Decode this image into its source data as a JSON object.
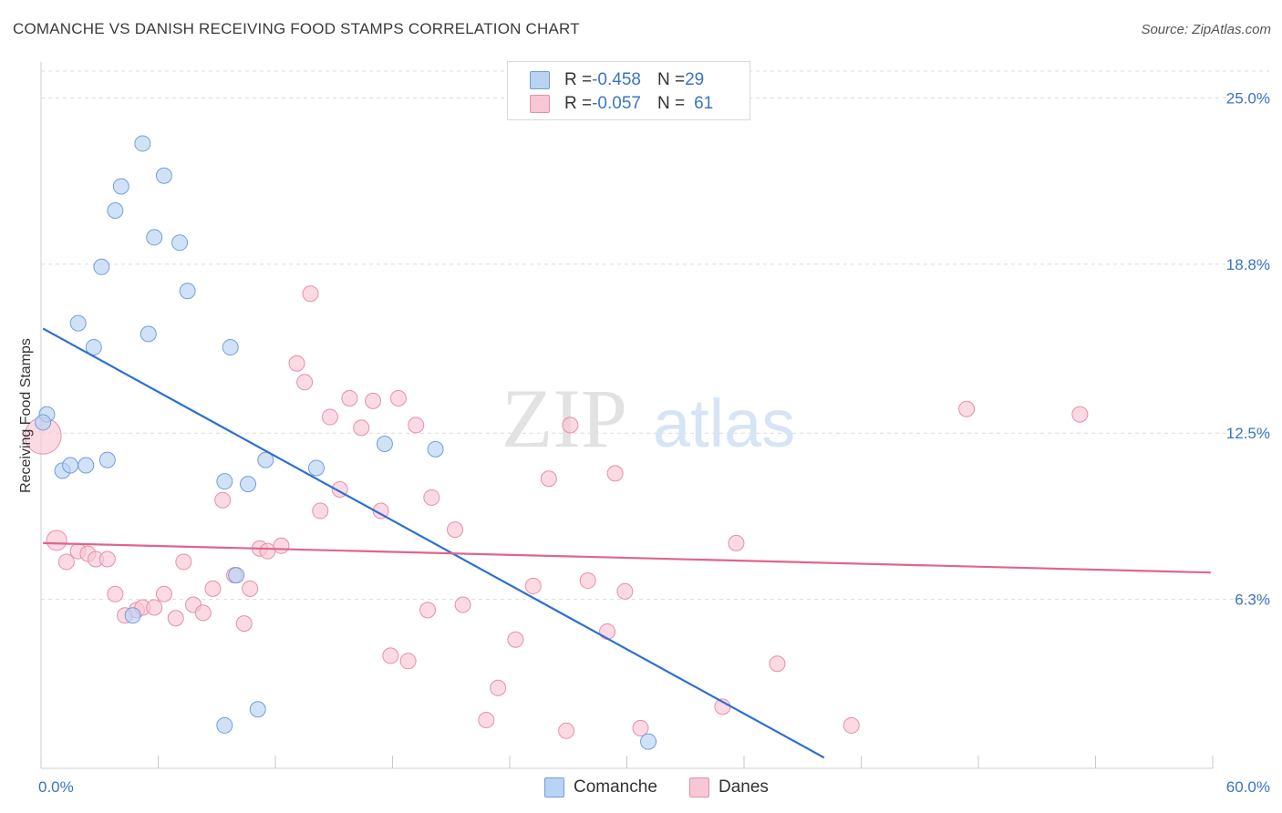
{
  "title": "COMANCHE VS DANISH RECEIVING FOOD STAMPS CORRELATION CHART",
  "source": "Source: ZipAtlas.com",
  "watermark": {
    "zip": "ZIP",
    "atlas": "atlas"
  },
  "legend": {
    "rows": [
      {
        "r_label": "R = ",
        "r_value": "-0.458",
        "n_label": "N = ",
        "n_value": "29"
      },
      {
        "r_label": "R = ",
        "r_value": "-0.057",
        "n_label": "N = ",
        "n_value": "61"
      }
    ]
  },
  "bottom_legend": {
    "comanche": "Comanche",
    "danes": "Danes"
  },
  "colors": {
    "comanche_fill": "#b9d3f3",
    "comanche_stroke": "#6f9fdc",
    "comanche_line": "#2f6fd1",
    "danes_fill": "#f9c6d5",
    "danes_stroke": "#e68fa9",
    "danes_line": "#e0648f",
    "tick_text": "#3b74c4",
    "grid": "#dcdcdc"
  },
  "chart_data": {
    "type": "scatter",
    "title": "COMANCHE VS DANISH RECEIVING FOOD STAMPS CORRELATION CHART",
    "xlabel": "",
    "ylabel": "Receiving Food Stamps",
    "xlim": [
      0,
      60
    ],
    "ylim": [
      0,
      26
    ],
    "x_tick_labels": [
      {
        "value": 0,
        "label": "0.0%"
      },
      {
        "value": 60,
        "label": "60.0%"
      }
    ],
    "y_tick_labels": [
      {
        "value": 6.3,
        "label": "6.3%"
      },
      {
        "value": 12.5,
        "label": "12.5%"
      },
      {
        "value": 18.8,
        "label": "18.8%"
      },
      {
        "value": 25.0,
        "label": "25.0%"
      }
    ],
    "series": [
      {
        "name": "Comanche",
        "r": -0.458,
        "n": 29,
        "points": [
          [
            0.3,
            13.2
          ],
          [
            1.1,
            11.1
          ],
          [
            1.5,
            11.3
          ],
          [
            2.3,
            11.3
          ],
          [
            3.4,
            11.5
          ],
          [
            1.9,
            16.6
          ],
          [
            2.7,
            15.7
          ],
          [
            3.1,
            18.7
          ],
          [
            3.8,
            20.8
          ],
          [
            4.1,
            21.7
          ],
          [
            5.2,
            23.3
          ],
          [
            5.5,
            16.2
          ],
          [
            5.8,
            19.8
          ],
          [
            6.3,
            22.1
          ],
          [
            7.1,
            19.6
          ],
          [
            7.5,
            17.8
          ],
          [
            9.4,
            10.7
          ],
          [
            9.7,
            15.7
          ],
          [
            10.6,
            10.6
          ],
          [
            10.0,
            7.2
          ],
          [
            11.5,
            11.5
          ],
          [
            14.1,
            11.2
          ],
          [
            17.6,
            12.1
          ],
          [
            20.2,
            11.9
          ],
          [
            4.7,
            5.7
          ],
          [
            9.4,
            1.6
          ],
          [
            11.1,
            2.2
          ],
          [
            31.1,
            1.0
          ],
          [
            0.1,
            12.9
          ]
        ],
        "trend": {
          "x": [
            0.1,
            40.1
          ],
          "y": [
            16.4,
            0.4
          ]
        }
      },
      {
        "name": "Danes",
        "r": -0.057,
        "n": 61,
        "points": [
          [
            0.1,
            12.4
          ],
          [
            0.8,
            8.5
          ],
          [
            1.3,
            7.7
          ],
          [
            1.9,
            8.1
          ],
          [
            2.4,
            8.0
          ],
          [
            2.8,
            7.8
          ],
          [
            3.4,
            7.8
          ],
          [
            3.8,
            6.5
          ],
          [
            4.3,
            5.7
          ],
          [
            4.9,
            5.9
          ],
          [
            5.2,
            6.0
          ],
          [
            5.8,
            6.0
          ],
          [
            6.3,
            6.5
          ],
          [
            6.9,
            5.6
          ],
          [
            7.3,
            7.7
          ],
          [
            7.8,
            6.1
          ],
          [
            8.3,
            5.8
          ],
          [
            8.8,
            6.7
          ],
          [
            9.3,
            10.0
          ],
          [
            9.9,
            7.2
          ],
          [
            10.4,
            5.4
          ],
          [
            10.7,
            6.7
          ],
          [
            11.2,
            8.2
          ],
          [
            11.6,
            8.1
          ],
          [
            12.3,
            8.3
          ],
          [
            13.1,
            15.1
          ],
          [
            13.5,
            14.4
          ],
          [
            13.8,
            17.7
          ],
          [
            14.3,
            9.6
          ],
          [
            14.8,
            13.1
          ],
          [
            15.3,
            10.4
          ],
          [
            15.8,
            13.8
          ],
          [
            16.4,
            12.7
          ],
          [
            17.0,
            13.7
          ],
          [
            17.4,
            9.6
          ],
          [
            17.9,
            4.2
          ],
          [
            18.3,
            13.8
          ],
          [
            18.8,
            4.0
          ],
          [
            19.2,
            12.8
          ],
          [
            19.8,
            5.9
          ],
          [
            20.0,
            10.1
          ],
          [
            21.2,
            8.9
          ],
          [
            21.6,
            6.1
          ],
          [
            22.8,
            1.8
          ],
          [
            23.4,
            3.0
          ],
          [
            24.3,
            4.8
          ],
          [
            25.2,
            6.8
          ],
          [
            26.0,
            10.8
          ],
          [
            26.9,
            1.4
          ],
          [
            27.1,
            12.8
          ],
          [
            28.0,
            7.0
          ],
          [
            29.0,
            5.1
          ],
          [
            29.4,
            11.0
          ],
          [
            29.9,
            6.6
          ],
          [
            30.7,
            1.5
          ],
          [
            34.9,
            2.3
          ],
          [
            35.6,
            8.4
          ],
          [
            37.7,
            3.9
          ],
          [
            41.5,
            1.6
          ],
          [
            47.4,
            13.4
          ],
          [
            53.2,
            13.2
          ]
        ],
        "trend": {
          "x": [
            0.1,
            59.9
          ],
          "y": [
            8.4,
            7.3
          ]
        }
      }
    ]
  }
}
